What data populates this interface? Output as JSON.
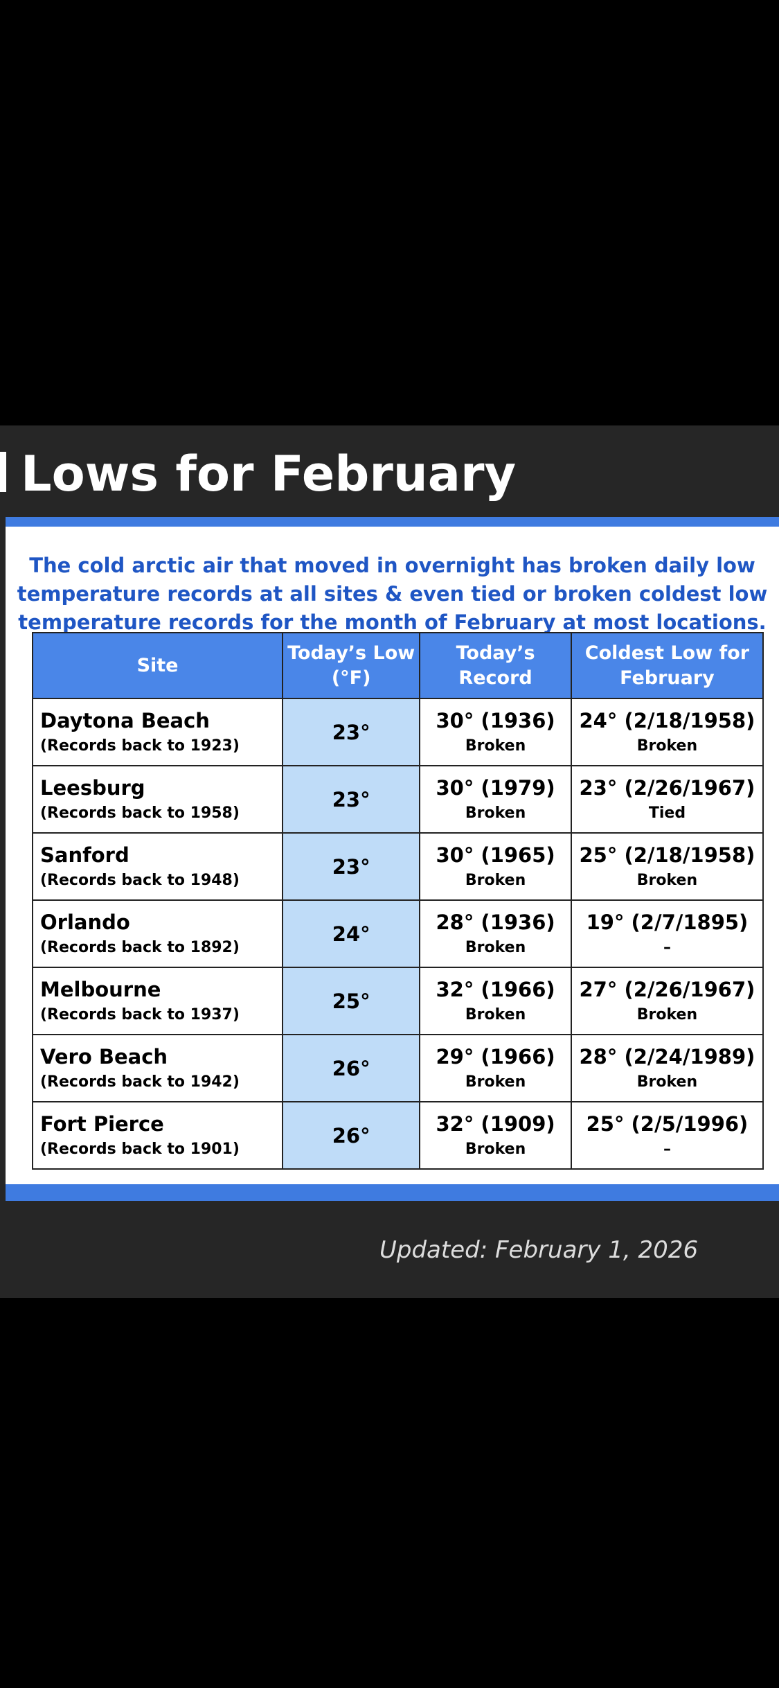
{
  "header": {
    "title": "Lows for February"
  },
  "intro": [
    "The cold arctic air that moved in overnight has broken daily low",
    "temperature records at all sites & even tied or broken coldest low",
    "temperature records for the month of February at most locations."
  ],
  "table": {
    "columns": [
      "Site",
      "Today’s Low (°F)",
      "Today’s Record",
      "Coldest Low for February"
    ],
    "rows": [
      [
        "Daytona Beach",
        "(Records back to 1923)",
        "23°",
        "30° (1936)",
        "Broken",
        "24° (2/18/1958)",
        "Broken"
      ],
      [
        "Leesburg",
        "(Records back to 1958)",
        "23°",
        "30° (1979)",
        "Broken",
        "23° (2/26/1967)",
        "Tied"
      ],
      [
        "Sanford",
        "(Records back to 1948)",
        "23°",
        "30° (1965)",
        "Broken",
        "25° (2/18/1958)",
        "Broken"
      ],
      [
        "Orlando",
        "(Records back to 1892)",
        "24°",
        "28° (1936)",
        "Broken",
        "19° (2/7/1895)",
        "–"
      ],
      [
        "Melbourne",
        "(Records back to 1937)",
        "25°",
        "32° (1966)",
        "Broken",
        "27° (2/26/1967)",
        "Broken"
      ],
      [
        "Vero Beach",
        "(Records back to 1942)",
        "26°",
        "29° (1966)",
        "Broken",
        "28° (2/24/1989)",
        "Broken"
      ],
      [
        "Fort Pierce",
        "(Records back to 1901)",
        "26°",
        "32° (1909)",
        "Broken",
        "25° (2/5/1996)",
        "–"
      ]
    ]
  },
  "footer": {
    "updated": "Updated: February 1, 2026"
  }
}
